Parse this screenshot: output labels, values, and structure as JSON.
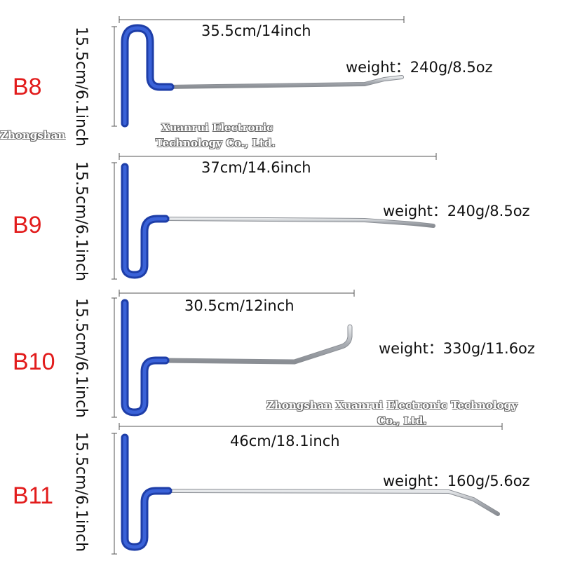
{
  "tools": [
    {
      "model": "B8",
      "height": "15.5cm/6.1inch",
      "length": "35.5cm/14inch",
      "weight": "weight：240g/8.5oz"
    },
    {
      "model": "B9",
      "height": "15.5cm/6.1inch",
      "length": "37cm/14.6inch",
      "weight": "weight：240g/8.5oz"
    },
    {
      "model": "B10",
      "height": "15.5cm/6.1inch",
      "length": "30.5cm/12inch",
      "weight": "weight：330g/11.6oz"
    },
    {
      "model": "B11",
      "height": "15.5cm/6.1inch",
      "length": "46cm/18.1inch",
      "weight": "weight：160g/5.6oz"
    }
  ],
  "watermarks": {
    "top_left_a": "Zhongshan",
    "top_right_a": "Xuanrui Electronic",
    "top_right_b": "Technology Co., Ltd.",
    "mid_a": "Zhongshan Xuanrui Electronic Technology",
    "mid_b": "Co., Ltd."
  },
  "colors": {
    "model_red": "#e21c1c",
    "handle_blue": "#2a4fc4",
    "rod_steel": "#b8bcc2"
  }
}
